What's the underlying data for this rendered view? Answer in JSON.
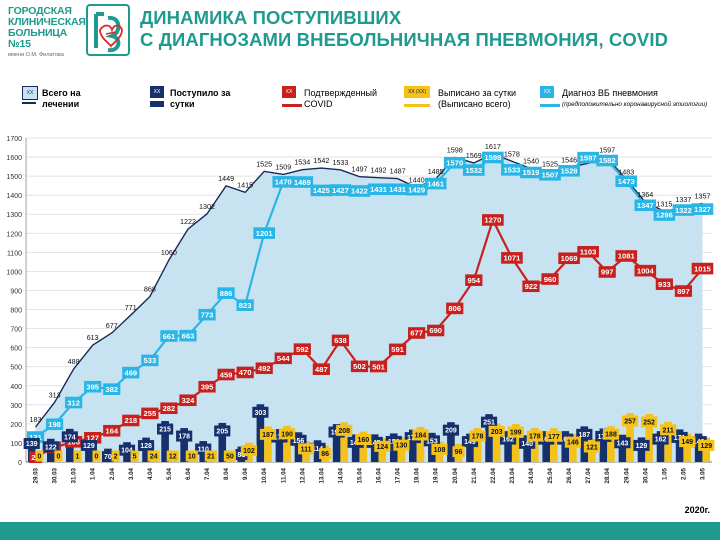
{
  "header": {
    "logo_lines": [
      "ГОРОДСКАЯ",
      "КЛИНИЧЕСКАЯ",
      "БОЛЬНИЦА №15"
    ],
    "logo_sub": "имени О.М. Филатова",
    "title_line1": "ДИНАМИКА ПОСТУПИВШИХ",
    "title_line2": "С ДИАГНОЗАМИ ВНЕБОЛЬНИЧНАЯ ПНЕВМОНИЯ, COVID"
  },
  "legend": {
    "total": {
      "box": "XX",
      "label_line1": "Всего на",
      "label_line2": "лечении"
    },
    "admitted": {
      "box": "XX",
      "label_line1": "Поступило за",
      "label_line2": "сутки"
    },
    "covid": {
      "box": "XX",
      "label_line1": "Подтвержденный",
      "label_line2": "COVID"
    },
    "discharged": {
      "box": "XX (XX)",
      "label_line1": "Выписано за сутки",
      "label_line2": "(Выписано всего)"
    },
    "pneumonia": {
      "box": "XX",
      "label_line1": "Диагноз ВБ пневмония",
      "label_line2": "(предположительно коронавирусной этиологии)"
    }
  },
  "year_label": "2020г.",
  "colors": {
    "brand": "#1f9a8f",
    "total_fill": "#c7e3f2",
    "total_line": "#1b2a55",
    "admitted": "#16306e",
    "covid": "#c8211d",
    "discharged": "#f4c21a",
    "pneumonia": "#29b6e6"
  },
  "chart_data": {
    "type": "line",
    "title": "ДИНАМИКА ПОСТУПИВШИХ С ДИАГНОЗАМИ ВНЕБОЛЬНИЧНАЯ ПНЕВМОНИЯ, COVID",
    "xlabel": "2020г.",
    "ylabel": "",
    "ylim": [
      0,
      1700
    ],
    "yticks": [
      0,
      100,
      200,
      300,
      400,
      500,
      600,
      700,
      800,
      900,
      1000,
      1100,
      1200,
      1300,
      1400,
      1500,
      1600,
      1700
    ],
    "grid": true,
    "x": [
      "29.03",
      "30.03",
      "31.03",
      "1.04",
      "2.04",
      "3.04",
      "4.04",
      "5.04",
      "6.04",
      "7.04",
      "8.04",
      "9.04",
      "10.04",
      "11.04",
      "12.04",
      "13.04",
      "14.04",
      "15.04",
      "16.04",
      "17.04",
      "18.04",
      "19.04",
      "20.04",
      "21.04",
      "22.04",
      "23.04",
      "24.04",
      "25.04",
      "26.04",
      "27.04",
      "28.04",
      "29.04",
      "30.04",
      "1.05",
      "2.05",
      "3.05"
    ],
    "series": [
      {
        "name": "Всего на лечении",
        "kind": "area",
        "values": [
          183,
          313,
          488,
          613,
          677,
          771,
          868,
          1060,
          1222,
          1302,
          1449,
          1415,
          1525,
          1509,
          1534,
          1542,
          1533,
          1497,
          1492,
          1487,
          1440,
          1485,
          1598,
          1569,
          1617,
          1578,
          1540,
          1525,
          1546,
          1567,
          1597,
          1483,
          1364,
          1315,
          1337,
          1357
        ]
      },
      {
        "name": "Поступило за сутки",
        "kind": "bar",
        "values": [
          139,
          122,
          174,
          129,
          70,
          104,
          128,
          215,
          178,
          110,
          205,
          81,
          303,
          173,
          156,
          114,
          199,
          145,
          145,
          150,
          170,
          153,
          209,
          149,
          251,
          162,
          140,
          162,
          162,
          187,
          176,
          143,
          129,
          162,
          171,
          149
        ]
      },
      {
        "name": "Подтвержденный COVID",
        "kind": "line",
        "values": [
          25,
          77,
          106,
          127,
          164,
          218,
          255,
          282,
          324,
          395,
          459,
          470,
          492,
          544,
          592,
          487,
          638,
          502,
          501,
          591,
          677,
          690,
          806,
          954,
          1270,
          1071,
          922,
          960,
          1069,
          1103,
          997,
          1081,
          1004,
          933,
          897,
          1015
        ]
      },
      {
        "name": "Выписано за сутки",
        "kind": "bar",
        "values": [
          0,
          0,
          1,
          0,
          2,
          5,
          24,
          12,
          10,
          21,
          50,
          102,
          187,
          190,
          111,
          86,
          208,
          160,
          124,
          130,
          184,
          108,
          96,
          178,
          203,
          199,
          178,
          177,
          146,
          121,
          188,
          257,
          252,
          211,
          149,
          129
        ]
      },
      {
        "name": "Диагноз ВБ пневмония",
        "kind": "line",
        "values": [
          131,
          198,
          312,
          395,
          382,
          469,
          533,
          661,
          663,
          773,
          886,
          823,
          1201,
          1470,
          1469,
          1425,
          1427,
          1422,
          1431,
          1431,
          1429,
          1461,
          1570,
          1532,
          1598,
          1533,
          1519,
          1507,
          1528,
          1597,
          1582,
          1473,
          1347,
          1296,
          1322,
          1327
        ]
      }
    ]
  }
}
